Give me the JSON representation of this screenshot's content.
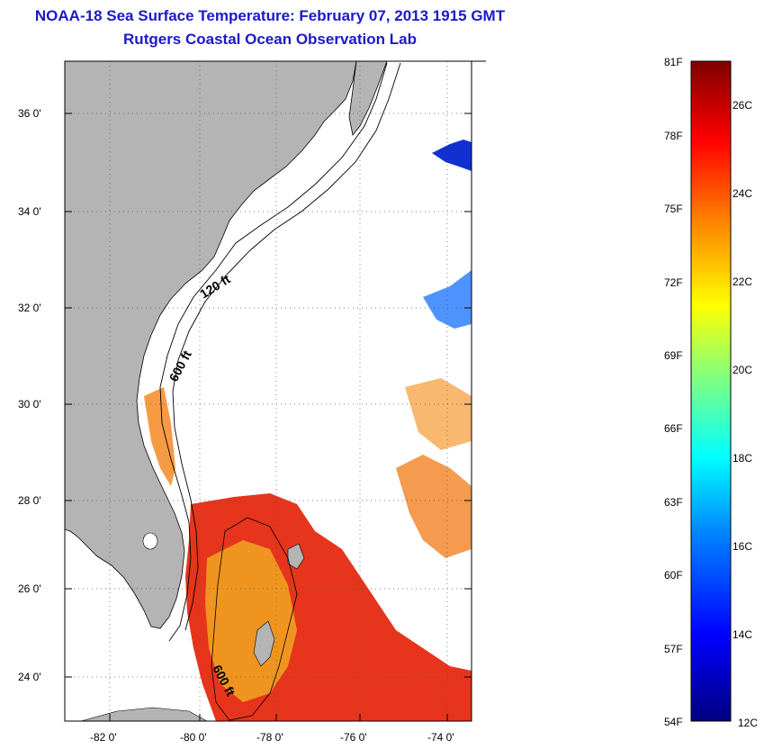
{
  "title_line1": "NOAA-18 Sea Surface Temperature:  February 07, 2013 1915 GMT",
  "title_line2": "Rutgers Coastal Ocean Observation Lab",
  "map": {
    "lat_labels": [
      "36 0'",
      "34 0'",
      "32 0'",
      "30 0'",
      "28 0'",
      "26 0'",
      "24 0'"
    ],
    "lon_labels": [
      "-82 0'",
      "-80 0'",
      "-78 0'",
      "-76 0'",
      "-74 0'"
    ],
    "contour_labels": [
      "120 ft",
      "600 ft",
      "600 ft"
    ],
    "colors": {
      "land": "#b4b4b4",
      "ocean": "#ffffff"
    }
  },
  "colorbar": {
    "fahrenheit": [
      "81F",
      "78F",
      "75F",
      "72F",
      "69F",
      "66F",
      "63F",
      "60F",
      "57F",
      "54F"
    ],
    "celsius": [
      "26C",
      "24C",
      "22C",
      "20C",
      "18C",
      "16C",
      "14C",
      "12C"
    ],
    "stops": [
      "#000080",
      "#0000ff",
      "#0080ff",
      "#00ffff",
      "#80ff80",
      "#ffff00",
      "#ff8000",
      "#ff0000",
      "#800000"
    ]
  }
}
